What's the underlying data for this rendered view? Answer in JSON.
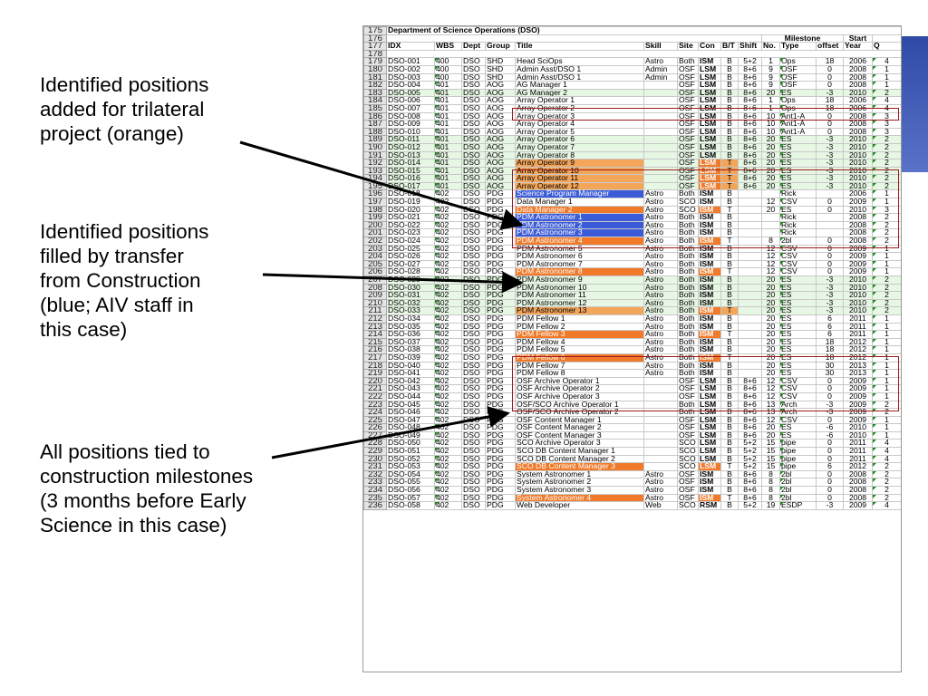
{
  "notes": [
    "Identified positions\nadded for trilateral\nproject (orange)",
    "Identified positions\nfilled by  transfer\nfrom Construction\n(blue; AIV staff in\nthis case)",
    "All positions tied to\nconstruction milestones\n(3 months before Early\nScience in this case)"
  ],
  "sheet_title": "Department of Science Operations (DSO)",
  "header_top": {
    "milestone": "Milestone",
    "start": "Start"
  },
  "headers": [
    "IDX",
    "WBS",
    "Dept",
    "Group",
    "Title",
    "Skill",
    "Site",
    "Con",
    "B/T",
    "Shift",
    "No.",
    "Type",
    "offset",
    "Year",
    "Q"
  ],
  "row_start": 179,
  "rows": [
    [
      "DSO-001",
      "400",
      "DSO",
      "SHD",
      "Head SciOps",
      "Astro",
      "Both",
      "ISM",
      "B",
      "5+2",
      "1",
      "Ops",
      "18",
      "2006",
      "4"
    ],
    [
      "DSO-002",
      "400",
      "DSO",
      "SHD",
      "Admin Asst/DSO 1",
      "Admin",
      "OSF",
      "LSM",
      "B",
      "8+6",
      "9",
      "OSF",
      "0",
      "2008",
      "1"
    ],
    [
      "DSO-003",
      "400",
      "DSO",
      "SHD",
      "Admin Asst/DSO 1",
      "Admin",
      "OSF",
      "LSM",
      "B",
      "8+6",
      "9",
      "OSF",
      "0",
      "2008",
      "1"
    ],
    [
      "DSO-004",
      "401",
      "DSO",
      "AOG",
      "AG Manager 1",
      "",
      "OSF",
      "LSM",
      "B",
      "8+6",
      "9",
      "OSF",
      "0",
      "2008",
      "1"
    ],
    [
      "DSO-005",
      "401",
      "DSO",
      "AOG",
      "AG Manager 2",
      "",
      "OSF",
      "LSM",
      "B",
      "8+6",
      "20",
      "ES",
      "-3",
      "2010",
      "2"
    ],
    [
      "DSO-006",
      "401",
      "DSO",
      "AOG",
      "Array Operator 1",
      "",
      "OSF",
      "LSM",
      "B",
      "8+6",
      "1",
      "Ops",
      "18",
      "2006",
      "4"
    ],
    [
      "DSO-007",
      "401",
      "DSO",
      "AOG",
      "Array Operator 2",
      "",
      "OSF",
      "LSM",
      "B",
      "8+6",
      "1",
      "Ops",
      "18",
      "2006",
      "4"
    ],
    [
      "DSO-008",
      "401",
      "DSO",
      "AOG",
      "Array Operator 3",
      "",
      "OSF",
      "LSM",
      "B",
      "8+6",
      "10",
      "Ant1-A",
      "0",
      "2008",
      "3"
    ],
    [
      "DSO-009",
      "401",
      "DSO",
      "AOG",
      "Array Operator 4",
      "",
      "OSF",
      "LSM",
      "B",
      "8+6",
      "10",
      "Ant1-A",
      "0",
      "2008",
      "3"
    ],
    [
      "DSO-010",
      "401",
      "DSO",
      "AOG",
      "Array Operator 5",
      "",
      "OSF",
      "LSM",
      "B",
      "8+6",
      "10",
      "Ant1-A",
      "0",
      "2008",
      "3"
    ],
    [
      "DSO-011",
      "401",
      "DSO",
      "AOG",
      "Array Operator 6",
      "",
      "OSF",
      "LSM",
      "B",
      "8+6",
      "20",
      "ES",
      "-3",
      "2010",
      "2"
    ],
    [
      "DSO-012",
      "401",
      "DSO",
      "AOG",
      "Array Operator 7",
      "",
      "OSF",
      "LSM",
      "B",
      "8+6",
      "20",
      "ES",
      "-3",
      "2010",
      "2"
    ],
    [
      "DSO-013",
      "401",
      "DSO",
      "AOG",
      "Array Operator 8",
      "",
      "OSF",
      "LSM",
      "B",
      "8+6",
      "20",
      "ES",
      "-3",
      "2010",
      "2"
    ],
    [
      "DSO-014",
      "401",
      "DSO",
      "AOG",
      "Array Operator 9",
      "",
      "OSF",
      "LSM",
      "T",
      "8+6",
      "20",
      "ES",
      "-3",
      "2010",
      "2"
    ],
    [
      "DSO-015",
      "401",
      "DSO",
      "AOG",
      "Array Operator 10",
      "",
      "OSF",
      "LSM",
      "T",
      "8+6",
      "20",
      "ES",
      "-3",
      "2010",
      "2"
    ],
    [
      "DSO-016",
      "401",
      "DSO",
      "AOG",
      "Array Operator 11",
      "",
      "OSF",
      "LSM",
      "T",
      "8+6",
      "20",
      "ES",
      "-3",
      "2010",
      "2"
    ],
    [
      "DSO-017",
      "401",
      "DSO",
      "AOG",
      "Array Operator 12",
      "",
      "OSF",
      "LSM",
      "T",
      "8+6",
      "20",
      "ES",
      "-3",
      "2010",
      "2"
    ],
    [
      "DSO-018",
      "402",
      "DSO",
      "PDG",
      "Science Program Manager",
      "Astro",
      "Both",
      "ISM",
      "B",
      "",
      "",
      "Rick",
      "",
      "2006",
      "1"
    ],
    [
      "DSO-019",
      "402",
      "DSO",
      "PDG",
      "Data Manager 1",
      "Astro",
      "SCO",
      "ISM",
      "B",
      "",
      "12",
      "CSV",
      "0",
      "2009",
      "1"
    ],
    [
      "DSO-020",
      "402",
      "DSO",
      "PDG",
      "Data Manager 2",
      "Astro",
      "SCO",
      "ISM",
      "T",
      "",
      "20",
      "ES",
      "0",
      "2010",
      "3"
    ],
    [
      "DSO-021",
      "402",
      "DSO",
      "PDG",
      "PDM Astronomer 1",
      "Astro",
      "Both",
      "ISM",
      "B",
      "",
      "",
      "Rick",
      "",
      "2008",
      "2"
    ],
    [
      "DSO-022",
      "402",
      "DSO",
      "PDG",
      "PDM Astronomer 2",
      "Astro",
      "Both",
      "ISM",
      "B",
      "",
      "",
      "Rick",
      "",
      "2008",
      "2"
    ],
    [
      "DSO-023",
      "402",
      "DSO",
      "PDG",
      "PDM Astronomer 3",
      "Astro",
      "Both",
      "ISM",
      "B",
      "",
      "",
      "Rick",
      "",
      "2008",
      "2"
    ],
    [
      "DSO-024",
      "402",
      "DSO",
      "PDG",
      "PDM Astronomer 4",
      "Astro",
      "Both",
      "ISM",
      "T",
      "",
      "8",
      "2bl",
      "0",
      "2008",
      "2"
    ],
    [
      "DSO-025",
      "402",
      "DSO",
      "PDG",
      "PDM Astronomer 5",
      "Astro",
      "Both",
      "ISM",
      "B",
      "",
      "12",
      "CSV",
      "0",
      "2009",
      "1"
    ],
    [
      "DSO-026",
      "402",
      "DSO",
      "PDG",
      "PDM Astronomer 6",
      "Astro",
      "Both",
      "ISM",
      "B",
      "",
      "12",
      "CSV",
      "0",
      "2009",
      "1"
    ],
    [
      "DSO-027",
      "402",
      "DSO",
      "PDG",
      "PDM Astronomer 7",
      "Astro",
      "Both",
      "ISM",
      "B",
      "",
      "12",
      "CSV",
      "0",
      "2009",
      "1"
    ],
    [
      "DSO-028",
      "402",
      "DSO",
      "PDG",
      "PDM Astronomer 8",
      "Astro",
      "Both",
      "ISM",
      "T",
      "",
      "12",
      "CSV",
      "0",
      "2009",
      "1"
    ],
    [
      "DSO-029",
      "402",
      "DSO",
      "PDG",
      "PDM Astronomer 9",
      "Astro",
      "Both",
      "ISM",
      "B",
      "",
      "20",
      "ES",
      "-3",
      "2010",
      "2"
    ],
    [
      "DSO-030",
      "402",
      "DSO",
      "PDG",
      "PDM Astronomer 10",
      "Astro",
      "Both",
      "ISM",
      "B",
      "",
      "20",
      "ES",
      "-3",
      "2010",
      "2"
    ],
    [
      "DSO-031",
      "402",
      "DSO",
      "PDG",
      "PDM Astronomer 11",
      "Astro",
      "Both",
      "ISM",
      "B",
      "",
      "20",
      "ES",
      "-3",
      "2010",
      "2"
    ],
    [
      "DSO-032",
      "402",
      "DSO",
      "PDG",
      "PDM Astronomer 12",
      "Astro",
      "Both",
      "ISM",
      "B",
      "",
      "20",
      "ES",
      "-3",
      "2010",
      "2"
    ],
    [
      "DSO-033",
      "402",
      "DSO",
      "PDG",
      "PDM Astronomer 13",
      "Astro",
      "Both",
      "ISM",
      "T",
      "",
      "20",
      "ES",
      "-3",
      "2010",
      "2"
    ],
    [
      "DSO-034",
      "402",
      "DSO",
      "PDG",
      "PDM Fellow 1",
      "Astro",
      "Both",
      "ISM",
      "B",
      "",
      "20",
      "ES",
      "6",
      "2011",
      "1"
    ],
    [
      "DSO-035",
      "402",
      "DSO",
      "PDG",
      "PDM Fellow 2",
      "Astro",
      "Both",
      "ISM",
      "B",
      "",
      "20",
      "ES",
      "6",
      "2011",
      "1"
    ],
    [
      "DSO-036",
      "402",
      "DSO",
      "PDG",
      "PDM Fellow 3",
      "Astro",
      "Both",
      "ISM",
      "T",
      "",
      "20",
      "ES",
      "6",
      "2011",
      "1"
    ],
    [
      "DSO-037",
      "402",
      "DSO",
      "PDG",
      "PDM Fellow 4",
      "Astro",
      "Both",
      "ISM",
      "B",
      "",
      "20",
      "ES",
      "18",
      "2012",
      "1"
    ],
    [
      "DSO-038",
      "402",
      "DSO",
      "PDG",
      "PDM Fellow 5",
      "Astro",
      "Both",
      "ISM",
      "B",
      "",
      "20",
      "ES",
      "18",
      "2012",
      "1"
    ],
    [
      "DSO-039",
      "402",
      "DSO",
      "PDG",
      "PDM Fellow 6",
      "Astro",
      "Both",
      "ISM",
      "T",
      "",
      "20",
      "ES",
      "18",
      "2012",
      "1"
    ],
    [
      "DSO-040",
      "402",
      "DSO",
      "PDG",
      "PDM Fellow 7",
      "Astro",
      "Both",
      "ISM",
      "B",
      "",
      "20",
      "ES",
      "30",
      "2013",
      "1"
    ],
    [
      "DSO-041",
      "402",
      "DSO",
      "PDG",
      "PDM Fellow 8",
      "Astro",
      "Both",
      "ISM",
      "B",
      "",
      "20",
      "ES",
      "30",
      "2013",
      "1"
    ],
    [
      "DSO-042",
      "402",
      "DSO",
      "PDG",
      "OSF Archive Operator 1",
      "",
      "OSF",
      "LSM",
      "B",
      "8+6",
      "12",
      "CSV",
      "0",
      "2009",
      "1"
    ],
    [
      "DSO-043",
      "402",
      "DSO",
      "PDG",
      "OSF Archive Operator 2",
      "",
      "OSF",
      "LSM",
      "B",
      "8+6",
      "12",
      "CSV",
      "0",
      "2009",
      "1"
    ],
    [
      "DSO-044",
      "402",
      "DSO",
      "PDG",
      "OSF Archive Operator 3",
      "",
      "OSF",
      "LSM",
      "B",
      "8+6",
      "12",
      "CSV",
      "0",
      "2009",
      "1"
    ],
    [
      "DSO-045",
      "402",
      "DSO",
      "PDG",
      "OSF/SCO Archive Operator 1",
      "",
      "Both",
      "LSM",
      "B",
      "8+6",
      "13",
      "Arch",
      "-3",
      "2009",
      "2"
    ],
    [
      "DSO-046",
      "402",
      "DSO",
      "PDG",
      "OSF/SCO Archive Operator 2",
      "",
      "Both",
      "LSM",
      "B",
      "8+6",
      "13",
      "Arch",
      "-3",
      "2009",
      "2"
    ],
    [
      "DSO-047",
      "402",
      "DSO",
      "PDG",
      "OSF Content Manager 1",
      "",
      "OSF",
      "LSM",
      "B",
      "8+6",
      "12",
      "CSV",
      "0",
      "2009",
      "1"
    ],
    [
      "DSO-048",
      "402",
      "DSO",
      "PDG",
      "OSF Content Manager 2",
      "",
      "OSF",
      "LSM",
      "B",
      "8+6",
      "20",
      "ES",
      "-6",
      "2010",
      "1"
    ],
    [
      "DSO-049",
      "402",
      "DSO",
      "PDG",
      "OSF Content Manager 3",
      "",
      "OSF",
      "LSM",
      "B",
      "8+6",
      "20",
      "ES",
      "-6",
      "2010",
      "1"
    ],
    [
      "DSO-050",
      "402",
      "DSO",
      "PDG",
      "SCO Archive Operator 3",
      "",
      "SCO",
      "LSM",
      "B",
      "5+2",
      "15",
      "pipe",
      "0",
      "2011",
      "4"
    ],
    [
      "DSO-051",
      "402",
      "DSO",
      "PDG",
      "SCO DB Content Manager 1",
      "",
      "SCO",
      "LSM",
      "B",
      "5+2",
      "15",
      "pipe",
      "0",
      "2011",
      "4"
    ],
    [
      "DSO-052",
      "402",
      "DSO",
      "PDG",
      "SCO DB Content Manager 2",
      "",
      "SCO",
      "LSM",
      "B",
      "5+2",
      "15",
      "pipe",
      "0",
      "2011",
      "4"
    ],
    [
      "DSO-053",
      "402",
      "DSO",
      "PDG",
      "SCO DB Content Manager 3",
      "",
      "SCO",
      "LSM",
      "T",
      "5+2",
      "15",
      "pipe",
      "6",
      "2012",
      "2"
    ],
    [
      "DSO-054",
      "402",
      "DSO",
      "PDG",
      "System Astronomer 1",
      "Astro",
      "OSF",
      "ISM",
      "B",
      "8+6",
      "8",
      "2bl",
      "0",
      "2008",
      "2"
    ],
    [
      "DSO-055",
      "402",
      "DSO",
      "PDG",
      "System Astronomer 2",
      "Astro",
      "OSF",
      "ISM",
      "B",
      "8+6",
      "8",
      "2bl",
      "0",
      "2008",
      "2"
    ],
    [
      "DSO-056",
      "402",
      "DSO",
      "PDG",
      "System Astronomer 3",
      "Astro",
      "OSF",
      "ISM",
      "B",
      "8+6",
      "8",
      "2bl",
      "0",
      "2008",
      "2"
    ],
    [
      "DSO-057",
      "402",
      "DSO",
      "PDG",
      "System Astronomer 4",
      "Astro",
      "OSF",
      "ISM",
      "T",
      "8+6",
      "8",
      "2bl",
      "0",
      "2008",
      "2"
    ],
    [
      "DSO-058",
      "402",
      "DSO",
      "PDG",
      "Web Developer",
      "Web",
      "SCO",
      "RSM",
      "B",
      "5+2",
      "19",
      "ESDP",
      "-3",
      "2009",
      "4"
    ]
  ]
}
